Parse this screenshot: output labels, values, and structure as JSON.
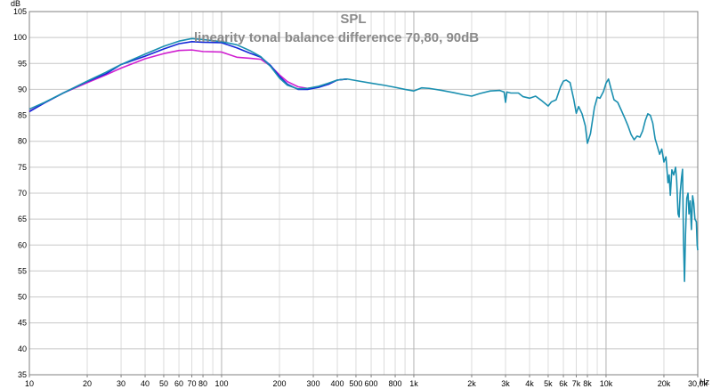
{
  "chart_data": {
    "type": "line",
    "title": "SPL",
    "subtitle": "linearity tonal balance difference 70,80, 90dB",
    "x_unit": "Hz",
    "y_unit": "dB",
    "x_scale": "log",
    "xlim": [
      10,
      30000
    ],
    "ylim": [
      35,
      105
    ],
    "grid": true,
    "legend": "none",
    "x_ticks": [
      {
        "value": 10,
        "label": "10"
      },
      {
        "value": 20,
        "label": "20"
      },
      {
        "value": 30,
        "label": "30"
      },
      {
        "value": 40,
        "label": "40"
      },
      {
        "value": 50,
        "label": "50"
      },
      {
        "value": 60,
        "label": "60"
      },
      {
        "value": 70,
        "label": "70"
      },
      {
        "value": 80,
        "label": "80"
      },
      {
        "value": 100,
        "label": "100"
      },
      {
        "value": 200,
        "label": "200"
      },
      {
        "value": 300,
        "label": "300"
      },
      {
        "value": 400,
        "label": "400"
      },
      {
        "value": 500,
        "label": "500"
      },
      {
        "value": 600,
        "label": "600"
      },
      {
        "value": 800,
        "label": "800"
      },
      {
        "value": 1000,
        "label": "1k"
      },
      {
        "value": 2000,
        "label": "2k"
      },
      {
        "value": 3000,
        "label": "3k"
      },
      {
        "value": 4000,
        "label": "4k"
      },
      {
        "value": 5000,
        "label": "5k"
      },
      {
        "value": 6000,
        "label": "6k"
      },
      {
        "value": 7000,
        "label": "7k"
      },
      {
        "value": 8000,
        "label": "8k"
      },
      {
        "value": 10000,
        "label": "10k"
      },
      {
        "value": 20000,
        "label": "20k"
      },
      {
        "value": 30000,
        "label": "30,0k"
      }
    ],
    "y_ticks": [
      {
        "value": 35,
        "label": "35"
      },
      {
        "value": 40,
        "label": "40"
      },
      {
        "value": 45,
        "label": "45"
      },
      {
        "value": 50,
        "label": "50"
      },
      {
        "value": 55,
        "label": "55"
      },
      {
        "value": 60,
        "label": "60"
      },
      {
        "value": 65,
        "label": "65"
      },
      {
        "value": 70,
        "label": "70"
      },
      {
        "value": 75,
        "label": "75"
      },
      {
        "value": 80,
        "label": "80"
      },
      {
        "value": 85,
        "label": "85"
      },
      {
        "value": 90,
        "label": "90"
      },
      {
        "value": 95,
        "label": "95"
      },
      {
        "value": 100,
        "label": "100"
      },
      {
        "value": 105,
        "label": "105"
      }
    ],
    "series": [
      {
        "color": "#d020d0",
        "points": [
          [
            10,
            85.8
          ],
          [
            12,
            87.4
          ],
          [
            15,
            89.3
          ],
          [
            20,
            91.3
          ],
          [
            25,
            92.8
          ],
          [
            30,
            94.1
          ],
          [
            40,
            95.9
          ],
          [
            50,
            96.9
          ],
          [
            60,
            97.5
          ],
          [
            70,
            97.6
          ],
          [
            80,
            97.3
          ],
          [
            100,
            97.2
          ],
          [
            120,
            96.2
          ],
          [
            140,
            96.0
          ],
          [
            160,
            95.8
          ],
          [
            180,
            94.5
          ],
          [
            200,
            92.8
          ],
          [
            220,
            91.5
          ],
          [
            250,
            90.5
          ],
          [
            280,
            90.2
          ],
          [
            320,
            90.5
          ],
          [
            360,
            91.0
          ],
          [
            400,
            91.8
          ],
          [
            450,
            92.0
          ]
        ]
      },
      {
        "color": "#1428d8",
        "points": [
          [
            10,
            85.7
          ],
          [
            12,
            87.4
          ],
          [
            15,
            89.3
          ],
          [
            20,
            91.5
          ],
          [
            25,
            93.0
          ],
          [
            30,
            94.8
          ],
          [
            40,
            96.4
          ],
          [
            50,
            97.8
          ],
          [
            60,
            98.8
          ],
          [
            70,
            99.2
          ],
          [
            80,
            99.1
          ],
          [
            100,
            99.0
          ],
          [
            120,
            98.0
          ],
          [
            140,
            97.0
          ],
          [
            160,
            96.2
          ],
          [
            180,
            94.6
          ],
          [
            200,
            92.5
          ],
          [
            220,
            91.0
          ],
          [
            250,
            90.0
          ],
          [
            280,
            90.0
          ],
          [
            320,
            90.4
          ],
          [
            360,
            91.0
          ],
          [
            400,
            91.8
          ],
          [
            450,
            92.0
          ]
        ]
      },
      {
        "color": "#1a8fb0",
        "points": [
          [
            10,
            86.2
          ],
          [
            12,
            87.5
          ],
          [
            15,
            89.3
          ],
          [
            20,
            91.6
          ],
          [
            25,
            93.3
          ],
          [
            30,
            94.8
          ],
          [
            40,
            96.8
          ],
          [
            50,
            98.3
          ],
          [
            60,
            99.3
          ],
          [
            70,
            99.8
          ],
          [
            80,
            99.6
          ],
          [
            100,
            99.2
          ],
          [
            120,
            98.6
          ],
          [
            140,
            97.5
          ],
          [
            160,
            96.3
          ],
          [
            180,
            94.4
          ],
          [
            200,
            92.2
          ],
          [
            220,
            90.8
          ],
          [
            250,
            90.1
          ],
          [
            280,
            90.2
          ],
          [
            320,
            90.6
          ],
          [
            360,
            91.2
          ],
          [
            400,
            91.8
          ],
          [
            450,
            92.0
          ],
          [
            500,
            91.7
          ],
          [
            600,
            91.2
          ],
          [
            700,
            90.8
          ],
          [
            800,
            90.4
          ],
          [
            900,
            90.0
          ],
          [
            1000,
            89.7
          ],
          [
            1050,
            90.0
          ],
          [
            1100,
            90.3
          ],
          [
            1200,
            90.2
          ],
          [
            1400,
            89.8
          ],
          [
            1600,
            89.4
          ],
          [
            1800,
            89.0
          ],
          [
            2000,
            88.7
          ],
          [
            2200,
            89.2
          ],
          [
            2500,
            89.7
          ],
          [
            2800,
            89.8
          ],
          [
            2950,
            89.5
          ],
          [
            3000,
            87.5
          ],
          [
            3050,
            89.5
          ],
          [
            3200,
            89.3
          ],
          [
            3500,
            89.3
          ],
          [
            3700,
            88.6
          ],
          [
            4000,
            88.3
          ],
          [
            4300,
            88.7
          ],
          [
            4600,
            87.9
          ],
          [
            5000,
            86.8
          ],
          [
            5200,
            87.6
          ],
          [
            5500,
            88.0
          ],
          [
            5800,
            90.5
          ],
          [
            6000,
            91.6
          ],
          [
            6200,
            91.8
          ],
          [
            6500,
            91.3
          ],
          [
            6800,
            88.0
          ],
          [
            7000,
            85.4
          ],
          [
            7200,
            86.7
          ],
          [
            7500,
            85.3
          ],
          [
            7800,
            83.0
          ],
          [
            8000,
            79.6
          ],
          [
            8300,
            81.5
          ],
          [
            8700,
            86.5
          ],
          [
            9000,
            88.5
          ],
          [
            9300,
            88.3
          ],
          [
            9700,
            89.6
          ],
          [
            10000,
            91.2
          ],
          [
            10300,
            92.0
          ],
          [
            10600,
            90.2
          ],
          [
            11000,
            88.0
          ],
          [
            11500,
            87.5
          ],
          [
            12000,
            86.0
          ],
          [
            12500,
            84.5
          ],
          [
            13000,
            83.0
          ],
          [
            13500,
            81.3
          ],
          [
            14000,
            80.3
          ],
          [
            14500,
            81.0
          ],
          [
            15000,
            80.8
          ],
          [
            15500,
            82.0
          ],
          [
            16000,
            84.0
          ],
          [
            16500,
            85.3
          ],
          [
            17000,
            85.0
          ],
          [
            17500,
            83.5
          ],
          [
            18000,
            80.5
          ],
          [
            18500,
            79.0
          ],
          [
            19000,
            77.5
          ],
          [
            19500,
            78.5
          ],
          [
            20000,
            76.0
          ],
          [
            20500,
            77.0
          ],
          [
            21000,
            72.0
          ],
          [
            21300,
            73.5
          ],
          [
            21600,
            69.6
          ],
          [
            22000,
            74.5
          ],
          [
            22500,
            73.5
          ],
          [
            23000,
            75.0
          ],
          [
            23300,
            72.5
          ],
          [
            23700,
            66.0
          ],
          [
            24000,
            65.4
          ],
          [
            24300,
            70.0
          ],
          [
            24700,
            73.0
          ],
          [
            25000,
            74.6
          ],
          [
            25300,
            60.5
          ],
          [
            25600,
            53.0
          ],
          [
            25900,
            62.0
          ],
          [
            26300,
            69.0
          ],
          [
            26700,
            70.0
          ],
          [
            27000,
            66.0
          ],
          [
            27400,
            68.5
          ],
          [
            27800,
            63.0
          ],
          [
            28200,
            69.5
          ],
          [
            28600,
            68.0
          ],
          [
            29000,
            65.0
          ],
          [
            29500,
            64.5
          ],
          [
            29800,
            60.0
          ],
          [
            30000,
            59.0
          ]
        ]
      }
    ]
  }
}
